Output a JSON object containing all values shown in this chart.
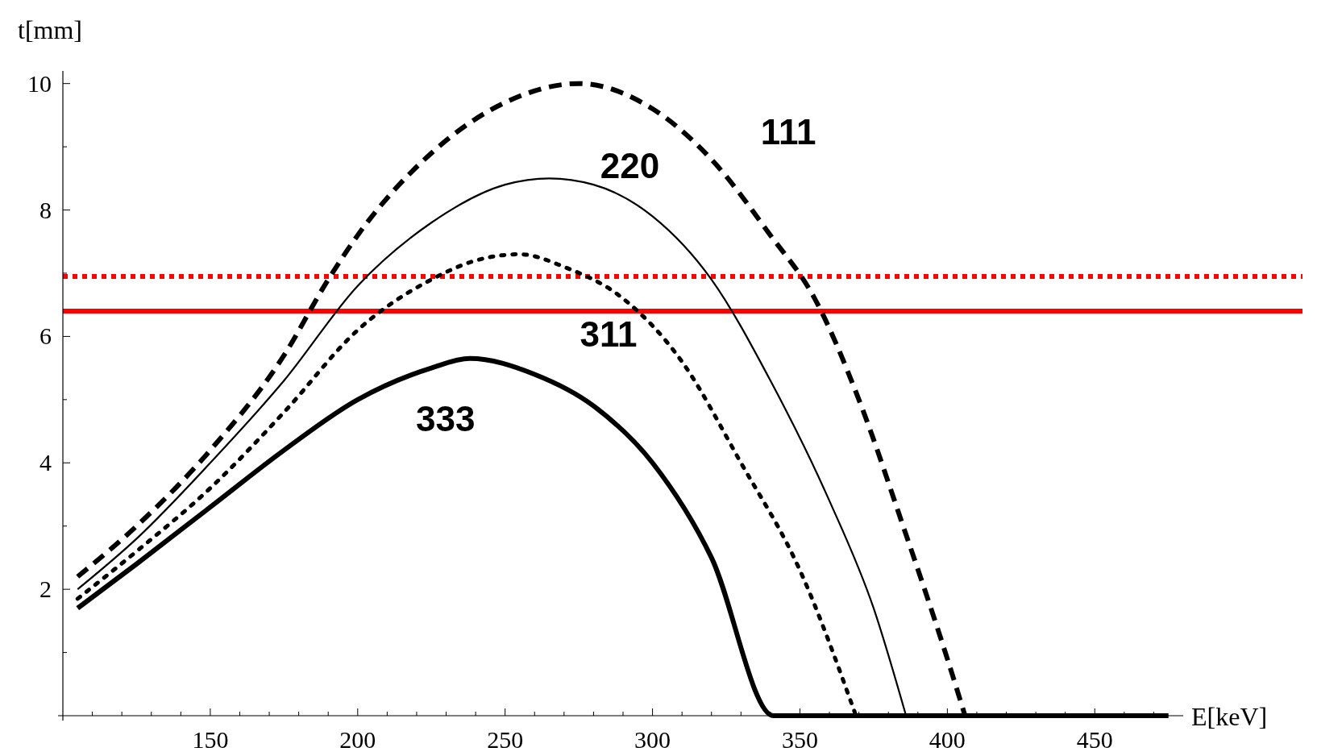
{
  "chart_data": {
    "type": "line",
    "xlabel": "E[keV]",
    "ylabel": "t[mm]",
    "xlim": [
      100,
      480
    ],
    "ylim": [
      0,
      10.2
    ],
    "xticks": [
      {
        "value": 110,
        "label": null
      },
      {
        "value": 120,
        "label": null
      },
      {
        "value": 130,
        "label": null
      },
      {
        "value": 140,
        "label": null
      },
      150,
      {
        "value": 160,
        "label": null
      },
      {
        "value": 170,
        "label": null
      },
      {
        "value": 180,
        "label": null
      },
      {
        "value": 190,
        "label": null
      },
      200,
      {
        "value": 210,
        "label": null
      },
      {
        "value": 220,
        "label": null
      },
      {
        "value": 230,
        "label": null
      },
      {
        "value": 240,
        "label": null
      },
      250,
      {
        "value": 260,
        "label": null
      },
      {
        "value": 270,
        "label": null
      },
      {
        "value": 280,
        "label": null
      },
      {
        "value": 290,
        "label": null
      },
      300,
      {
        "value": 310,
        "label": null
      },
      {
        "value": 320,
        "label": null
      },
      {
        "value": 330,
        "label": null
      },
      {
        "value": 340,
        "label": null
      },
      350,
      {
        "value": 360,
        "label": null
      },
      {
        "value": 370,
        "label": null
      },
      {
        "value": 380,
        "label": null
      },
      {
        "value": 390,
        "label": null
      },
      400,
      {
        "value": 410,
        "label": null
      },
      {
        "value": 420,
        "label": null
      },
      {
        "value": 430,
        "label": null
      },
      {
        "value": 440,
        "label": null
      },
      450,
      {
        "value": 460,
        "label": null
      },
      {
        "value": 470,
        "label": null
      }
    ],
    "yticks": [
      {
        "value": 1,
        "label": null
      },
      2,
      {
        "value": 3,
        "label": null
      },
      4,
      {
        "value": 5,
        "label": null
      },
      6,
      {
        "value": 7,
        "label": null
      },
      8,
      {
        "value": 9,
        "label": null
      },
      10
    ],
    "grid": false,
    "marker": "none",
    "series": [
      {
        "name": "111",
        "color": "#000000",
        "line_style": "dashed",
        "x": [
          105,
          125,
          150,
          175,
          190,
          200,
          225,
          250,
          275,
          300,
          320,
          340,
          355,
          370,
          385,
          400,
          406
        ],
        "values": [
          2.2,
          3.0,
          4.2,
          5.7,
          6.9,
          7.6,
          8.9,
          9.7,
          10.0,
          9.6,
          8.8,
          7.6,
          6.6,
          5.0,
          3.0,
          0.9,
          0
        ]
      },
      {
        "name": "220",
        "color": "#000000",
        "line_style": "solid",
        "x": [
          105,
          125,
          150,
          175,
          200,
          225,
          250,
          265,
          280,
          300,
          320,
          340,
          360,
          375,
          386
        ],
        "values": [
          2.0,
          2.8,
          4.0,
          5.3,
          6.8,
          7.8,
          8.4,
          8.5,
          8.4,
          7.9,
          6.9,
          5.3,
          3.4,
          1.7,
          0
        ]
      },
      {
        "name": "311",
        "color": "#000000",
        "line_style": "dotted",
        "x": [
          105,
          125,
          150,
          175,
          200,
          225,
          240,
          255,
          270,
          290,
          310,
          330,
          350,
          369
        ],
        "values": [
          1.85,
          2.6,
          3.6,
          4.8,
          6.1,
          6.9,
          7.2,
          7.3,
          7.1,
          6.6,
          5.6,
          4.0,
          2.3,
          0
        ]
      },
      {
        "name": "333",
        "color": "#000000",
        "line_style": "solid",
        "x": [
          105,
          125,
          150,
          175,
          200,
          225,
          238,
          260,
          280,
          300,
          320,
          341,
          475
        ],
        "values": [
          1.7,
          2.4,
          3.3,
          4.2,
          5.0,
          5.5,
          5.65,
          5.4,
          4.9,
          4.0,
          2.5,
          0,
          0
        ]
      }
    ],
    "ref_lines": [
      {
        "axis": "y",
        "value": 6.95,
        "color": "#ff0000",
        "line_style": "dotted"
      },
      {
        "axis": "y",
        "value": 6.4,
        "color": "#ff0000",
        "line_style": "solid"
      }
    ]
  }
}
